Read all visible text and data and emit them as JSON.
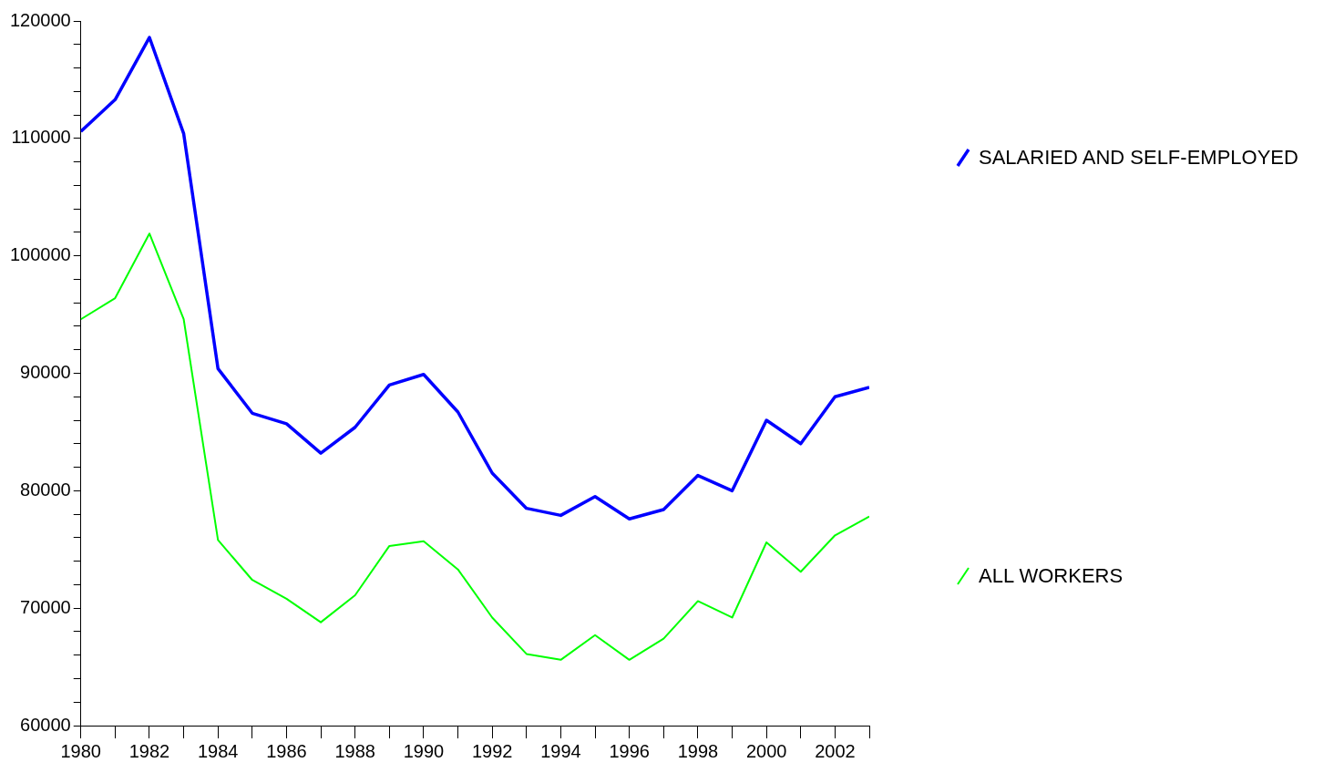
{
  "chart_data": {
    "type": "line",
    "x": [
      1980,
      1981,
      1982,
      1983,
      1984,
      1985,
      1986,
      1987,
      1988,
      1989,
      1990,
      1991,
      1992,
      1993,
      1994,
      1995,
      1996,
      1997,
      1998,
      1999,
      2000,
      2001,
      2002,
      2003
    ],
    "series": [
      {
        "name": "SALARIED AND SELF-EMPLOYED",
        "color": "#0000ff",
        "values": [
          110600,
          113300,
          118600,
          110400,
          90400,
          86600,
          85700,
          83200,
          85400,
          89000,
          89900,
          86700,
          81500,
          78500,
          77900,
          79500,
          77600,
          78400,
          81300,
          80000,
          86000,
          84000,
          88000,
          88800
        ]
      },
      {
        "name": "ALL WORKERS",
        "color": "#00ff00",
        "values": [
          94600,
          96400,
          101900,
          94600,
          75800,
          72400,
          70800,
          68800,
          71100,
          75300,
          75700,
          73300,
          69200,
          66100,
          65600,
          67700,
          65600,
          67400,
          70600,
          69200,
          75600,
          73100,
          76200,
          77800
        ]
      }
    ],
    "xlim": [
      1980,
      2003
    ],
    "xticks": [
      1980,
      {
        "value": 1981,
        "label": null
      },
      1982,
      {
        "value": 1983,
        "label": null
      },
      1984,
      {
        "value": 1985,
        "label": null
      },
      1986,
      {
        "value": 1987,
        "label": null
      },
      1988,
      {
        "value": 1989,
        "label": null
      },
      1990,
      {
        "value": 1991,
        "label": null
      },
      1992,
      {
        "value": 1993,
        "label": null
      },
      1994,
      {
        "value": 1995,
        "label": null
      },
      1996,
      {
        "value": 1997,
        "label": null
      },
      1998,
      {
        "value": 1999,
        "label": null
      },
      2000,
      {
        "value": 2001,
        "label": null
      },
      2002,
      {
        "value": 2003,
        "label": null
      }
    ],
    "ylim": [
      60000,
      120000
    ],
    "yticks": [
      60000,
      {
        "value": 62000,
        "label": null
      },
      {
        "value": 64000,
        "label": null
      },
      {
        "value": 66000,
        "label": null
      },
      {
        "value": 68000,
        "label": null
      },
      70000,
      {
        "value": 72000,
        "label": null
      },
      {
        "value": 74000,
        "label": null
      },
      {
        "value": 76000,
        "label": null
      },
      {
        "value": 78000,
        "label": null
      },
      80000,
      {
        "value": 82000,
        "label": null
      },
      {
        "value": 84000,
        "label": null
      },
      {
        "value": 86000,
        "label": null
      },
      {
        "value": 88000,
        "label": null
      },
      90000,
      {
        "value": 92000,
        "label": null
      },
      {
        "value": 94000,
        "label": null
      },
      {
        "value": 96000,
        "label": null
      },
      {
        "value": 98000,
        "label": null
      },
      100000,
      {
        "value": 102000,
        "label": null
      },
      {
        "value": 104000,
        "label": null
      },
      {
        "value": 106000,
        "label": null
      },
      {
        "value": 108000,
        "label": null
      },
      110000,
      {
        "value": 112000,
        "label": null
      },
      {
        "value": 114000,
        "label": null
      },
      {
        "value": 116000,
        "label": null
      },
      {
        "value": 118000,
        "label": null
      },
      120000
    ],
    "grid": false,
    "legend": "right",
    "marker": "none",
    "line_style": "solid"
  }
}
